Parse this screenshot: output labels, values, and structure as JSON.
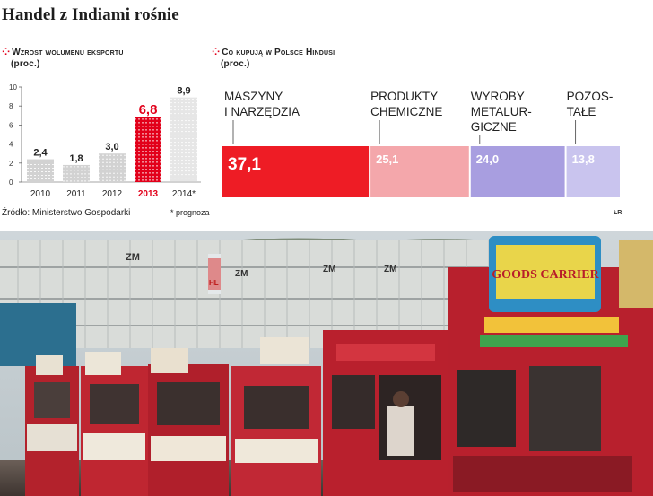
{
  "title": "Handel z Indiami rośnie",
  "left_section": {
    "heading_line1": "Wzrost wolumenu eksportu",
    "heading_line2": "(proc.)"
  },
  "right_section": {
    "heading_line1": "Co kupują w Polsce Hindusi",
    "heading_line2": "(proc.)"
  },
  "source": "Źródło: Ministerstwo Gospodarki",
  "note": "* prognoza",
  "credit": "ŁR",
  "colors": {
    "dot_red": "#e2001a",
    "bar_grey": "#d2d2d2",
    "bar_highlight": "#e2001a",
    "seg1": "#ee1c25",
    "seg2": "#f4a7ab",
    "seg3": "#a89ee0",
    "seg4": "#c9c4ee"
  },
  "chart_data": [
    {
      "type": "bar",
      "categories": [
        "2010",
        "2011",
        "2012",
        "2013",
        "2014*"
      ],
      "values": [
        2.4,
        1.8,
        3.0,
        6.8,
        8.9
      ],
      "value_labels": [
        "2,4",
        "1,8",
        "3,0",
        "6,8",
        "8,9"
      ],
      "highlight_index": 3,
      "forecast_index": 4,
      "ylim": [
        0,
        10
      ],
      "yticks": [
        "0",
        "2",
        "4",
        "6",
        "8",
        "10"
      ],
      "grid": false
    },
    {
      "type": "bar",
      "stacked": "horizontal",
      "categories": [
        "MASZYNY\nI NARZĘDZIA",
        "PRODUKTY\nCHEMICZNE",
        "WYROBY\nMETALUR-\nGICZNE",
        "POZOS-\nTAŁE"
      ],
      "values": [
        37.1,
        25.1,
        24.0,
        13.8
      ],
      "value_labels": [
        "37,1",
        "25,1",
        "24,0",
        "13,8"
      ]
    }
  ],
  "photo": {
    "signs": [
      "GOODS CARRIER",
      "ZM",
      "ZM",
      "ZM",
      "ZM",
      "HL"
    ]
  }
}
